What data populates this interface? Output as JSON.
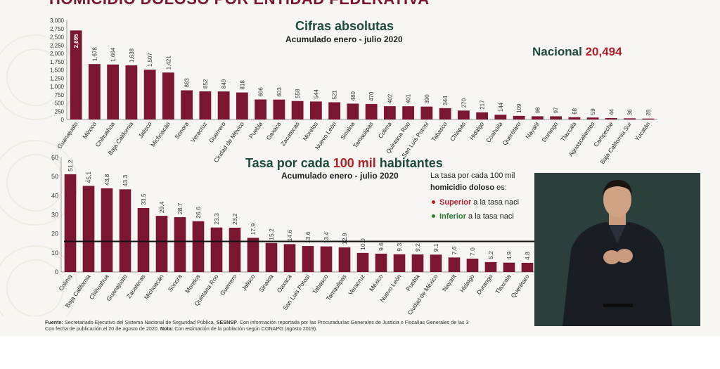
{
  "header": {
    "title": "HOMICIDIO DOLOSO POR ENTIDAD FEDERATIVA"
  },
  "chart1": {
    "title": "Cifras absolutas",
    "subtitle": "Acumulado enero - julio 2020"
  },
  "nacional": {
    "label": "Nacional",
    "value": "20,494"
  },
  "chart2": {
    "title_prefix": "Tasa por cada",
    "title_highlight": "100 mil",
    "title_suffix": "habitantes",
    "subtitle": "Acumulado enero - julio 2020"
  },
  "legend": {
    "intro_plain": "La tasa por cada 100 mil",
    "intro_line2_bold": "homicidio doloso",
    "intro_line2_rest": " es:",
    "superior_label": "Superior",
    "superior_rest": " a la tasa naci",
    "inferior_label": "Inferior",
    "inferior_rest": " a la tasa naci"
  },
  "footer": {
    "fuente_label": "Fuente:",
    "fuente_text": " Secretariado Ejecutivo del Sistema Nacional de Seguridad Pública, ",
    "sesnsp": "SESNSP",
    "fuente_rest": ". Con información reportada por las Procuradurías Generales de Justicia o Fiscalías Generales de las 3",
    "line2": "Con fecha de publicación el 20 de agosto de 2020. ",
    "nota_label": "Nota:",
    "nota_text": " Con estimación de la población según CONAPO (agosto 2019)."
  },
  "colors": {
    "bar": "#7b1630",
    "title_green": "#1e4b3c",
    "highlight_red": "#b41e28"
  },
  "chart_data": [
    {
      "type": "bar",
      "title": "Cifras absolutas",
      "subtitle": "Acumulado enero - julio 2020",
      "ylim": [
        0,
        3000
      ],
      "yticks": [
        "0",
        "250",
        "500",
        "750",
        "1,000",
        "1,250",
        "1,500",
        "1,750",
        "2,000",
        "2,250",
        "2,500",
        "2,750",
        "3,000"
      ],
      "categories": [
        "Guanajuato",
        "México",
        "Chihuahua",
        "Baja California",
        "Jalisco",
        "Michoacán",
        "Sonora",
        "Veracruz",
        "Guerrero",
        "Ciudad de México",
        "Puebla",
        "Oaxaca",
        "Zacatecas",
        "Morelos",
        "Nuevo León",
        "Sinaloa",
        "Tamaulipas",
        "Colima",
        "Quintana Roo",
        "San Luis Potosí",
        "Tabasco",
        "Chiapas",
        "Hidalgo",
        "Coahuila",
        "Querétaro",
        "Nayarit",
        "Durango",
        "Tlaxcala",
        "Aguascalientes",
        "Campeche",
        "Baja California Sur",
        "Yucatán"
      ],
      "values": [
        2695,
        1678,
        1664,
        1638,
        1507,
        1421,
        883,
        852,
        849,
        818,
        606,
        603,
        558,
        544,
        521,
        480,
        470,
        402,
        401,
        390,
        344,
        270,
        217,
        144,
        109,
        98,
        97,
        68,
        59,
        44,
        36,
        28
      ],
      "labels": [
        "2,695",
        "1,678",
        "1,664",
        "1,638",
        "1,507",
        "1,421",
        "883",
        "852",
        "849",
        "818",
        "606",
        "603",
        "558",
        "544",
        "521",
        "480",
        "470",
        "402",
        "401",
        "390",
        "344",
        "270",
        "217",
        "144",
        "109",
        "98",
        "97",
        "68",
        "59",
        "44",
        "36",
        "28"
      ]
    },
    {
      "type": "bar",
      "title": "Tasa por cada 100 mil habitantes",
      "subtitle": "Acumulado enero - julio 2020",
      "ylim": [
        0,
        60
      ],
      "yticks": [
        "0",
        "10",
        "20",
        "30",
        "40",
        "50",
        "60"
      ],
      "reference_line": 16,
      "categories": [
        "Colima",
        "Baja California",
        "Chihuahua",
        "Guanajuato",
        "Zacatecas",
        "Michoacán",
        "Sonora",
        "Morelos",
        "Quintana Roo",
        "Guerrero",
        "Jalisco",
        "Sinaloa",
        "Oaxaca",
        "San Luis Potosí",
        "Tabasco",
        "Tamaulipas",
        "Veracruz",
        "México",
        "Nuevo León",
        "Puebla",
        "Ciudad de México",
        "Nayarit",
        "Hidalgo",
        "Durango",
        "Tlaxcala",
        "Querétaro"
      ],
      "values": [
        51.2,
        45.1,
        43.8,
        43.3,
        33.5,
        29.4,
        28.7,
        26.6,
        23.3,
        23.2,
        17.9,
        15.2,
        14.6,
        13.6,
        13.4,
        12.9,
        10.0,
        9.6,
        9.3,
        9.2,
        9.1,
        7.6,
        7.0,
        5.2,
        4.9,
        4.8
      ],
      "labels": [
        "51.2",
        "45.1",
        "43.8",
        "43.3",
        "33.5",
        "29.4",
        "28.7",
        "26.6",
        "23.3",
        "23.2",
        "17.9",
        "15.2",
        "14.6",
        "13.6",
        "13.4",
        "12.9",
        "10.0",
        "9.6",
        "9.3",
        "9.2",
        "9.1",
        "7.6",
        "7.0",
        "5.2",
        "4.9",
        "4.8"
      ]
    }
  ]
}
